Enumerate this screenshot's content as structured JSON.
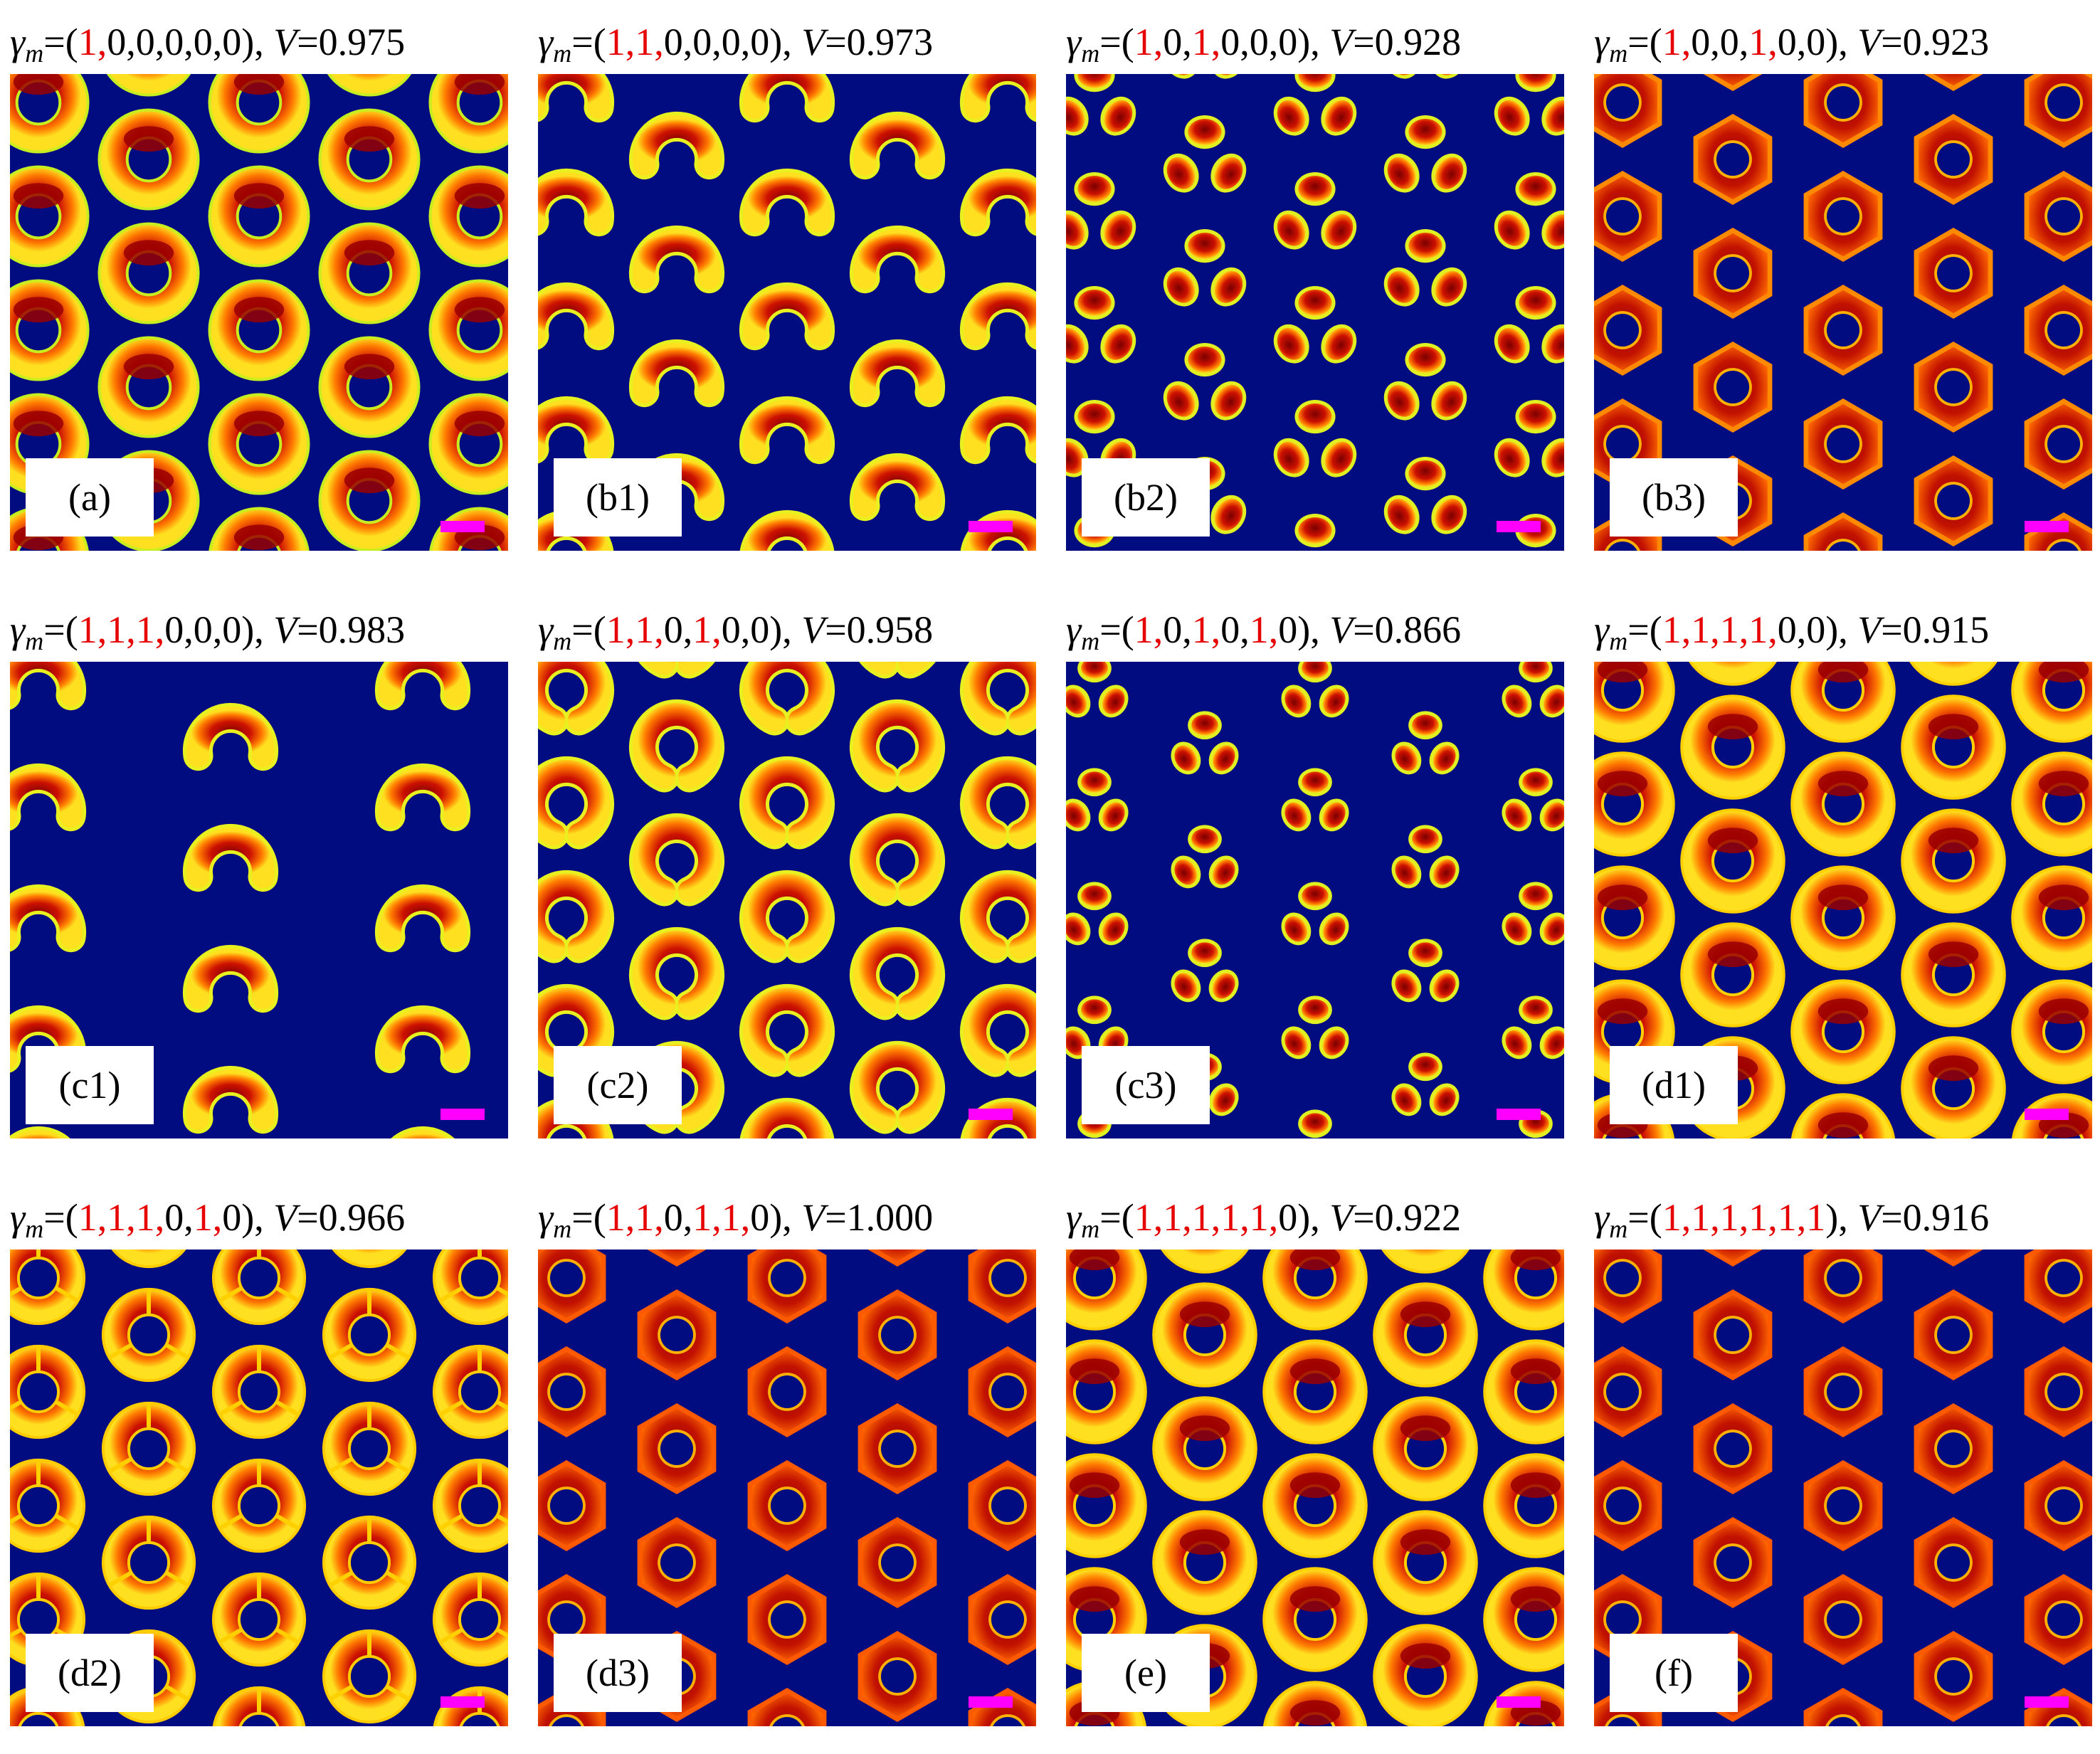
{
  "figure": {
    "gamma_symbol": "γ",
    "gamma_subscript": "m",
    "v_symbol": "V",
    "colors": {
      "background": "#000c80",
      "highlight": "#e60000",
      "scale_bar": "#ff00ff"
    },
    "panels": [
      {
        "label": "(a)",
        "gamma": [
          "1",
          "0",
          "0",
          "0",
          "0",
          "0"
        ],
        "v": "0.975",
        "pattern": "ring"
      },
      {
        "label": "(b1)",
        "gamma": [
          "1",
          "1",
          "0",
          "0",
          "0",
          "0"
        ],
        "v": "0.973",
        "pattern": "crescent"
      },
      {
        "label": "(b2)",
        "gamma": [
          "1",
          "0",
          "1",
          "0",
          "0",
          "0"
        ],
        "v": "0.928",
        "pattern": "trimer"
      },
      {
        "label": "(b3)",
        "gamma": [
          "1",
          "0",
          "0",
          "1",
          "0",
          "0"
        ],
        "v": "0.923",
        "pattern": "hexring"
      },
      {
        "label": "(c1)",
        "gamma": [
          "1",
          "1",
          "1",
          "0",
          "0",
          "0"
        ],
        "v": "0.983",
        "pattern": "crescent-sparse"
      },
      {
        "label": "(c2)",
        "gamma": [
          "1",
          "1",
          "0",
          "1",
          "0",
          "0"
        ],
        "v": "0.958",
        "pattern": "c-ring"
      },
      {
        "label": "(c3)",
        "gamma": [
          "1",
          "0",
          "1",
          "0",
          "1",
          "0"
        ],
        "v": "0.866",
        "pattern": "trimer-small"
      },
      {
        "label": "(d1)",
        "gamma": [
          "1",
          "1",
          "1",
          "1",
          "0",
          "0"
        ],
        "v": "0.915",
        "pattern": "ring-thick"
      },
      {
        "label": "(d2)",
        "gamma": [
          "1",
          "1",
          "1",
          "0",
          "1",
          "0"
        ],
        "v": "0.966",
        "pattern": "triring"
      },
      {
        "label": "(d3)",
        "gamma": [
          "1",
          "1",
          "0",
          "1",
          "1",
          "0"
        ],
        "v": "1.000",
        "pattern": "hexring-dark"
      },
      {
        "label": "(e)",
        "gamma": [
          "1",
          "1",
          "1",
          "1",
          "1",
          "0"
        ],
        "v": "0.922",
        "pattern": "ring-thick"
      },
      {
        "label": "(f)",
        "gamma": [
          "1",
          "1",
          "1",
          "1",
          "1",
          "1"
        ],
        "v": "0.916",
        "pattern": "hexring-dark"
      }
    ]
  }
}
